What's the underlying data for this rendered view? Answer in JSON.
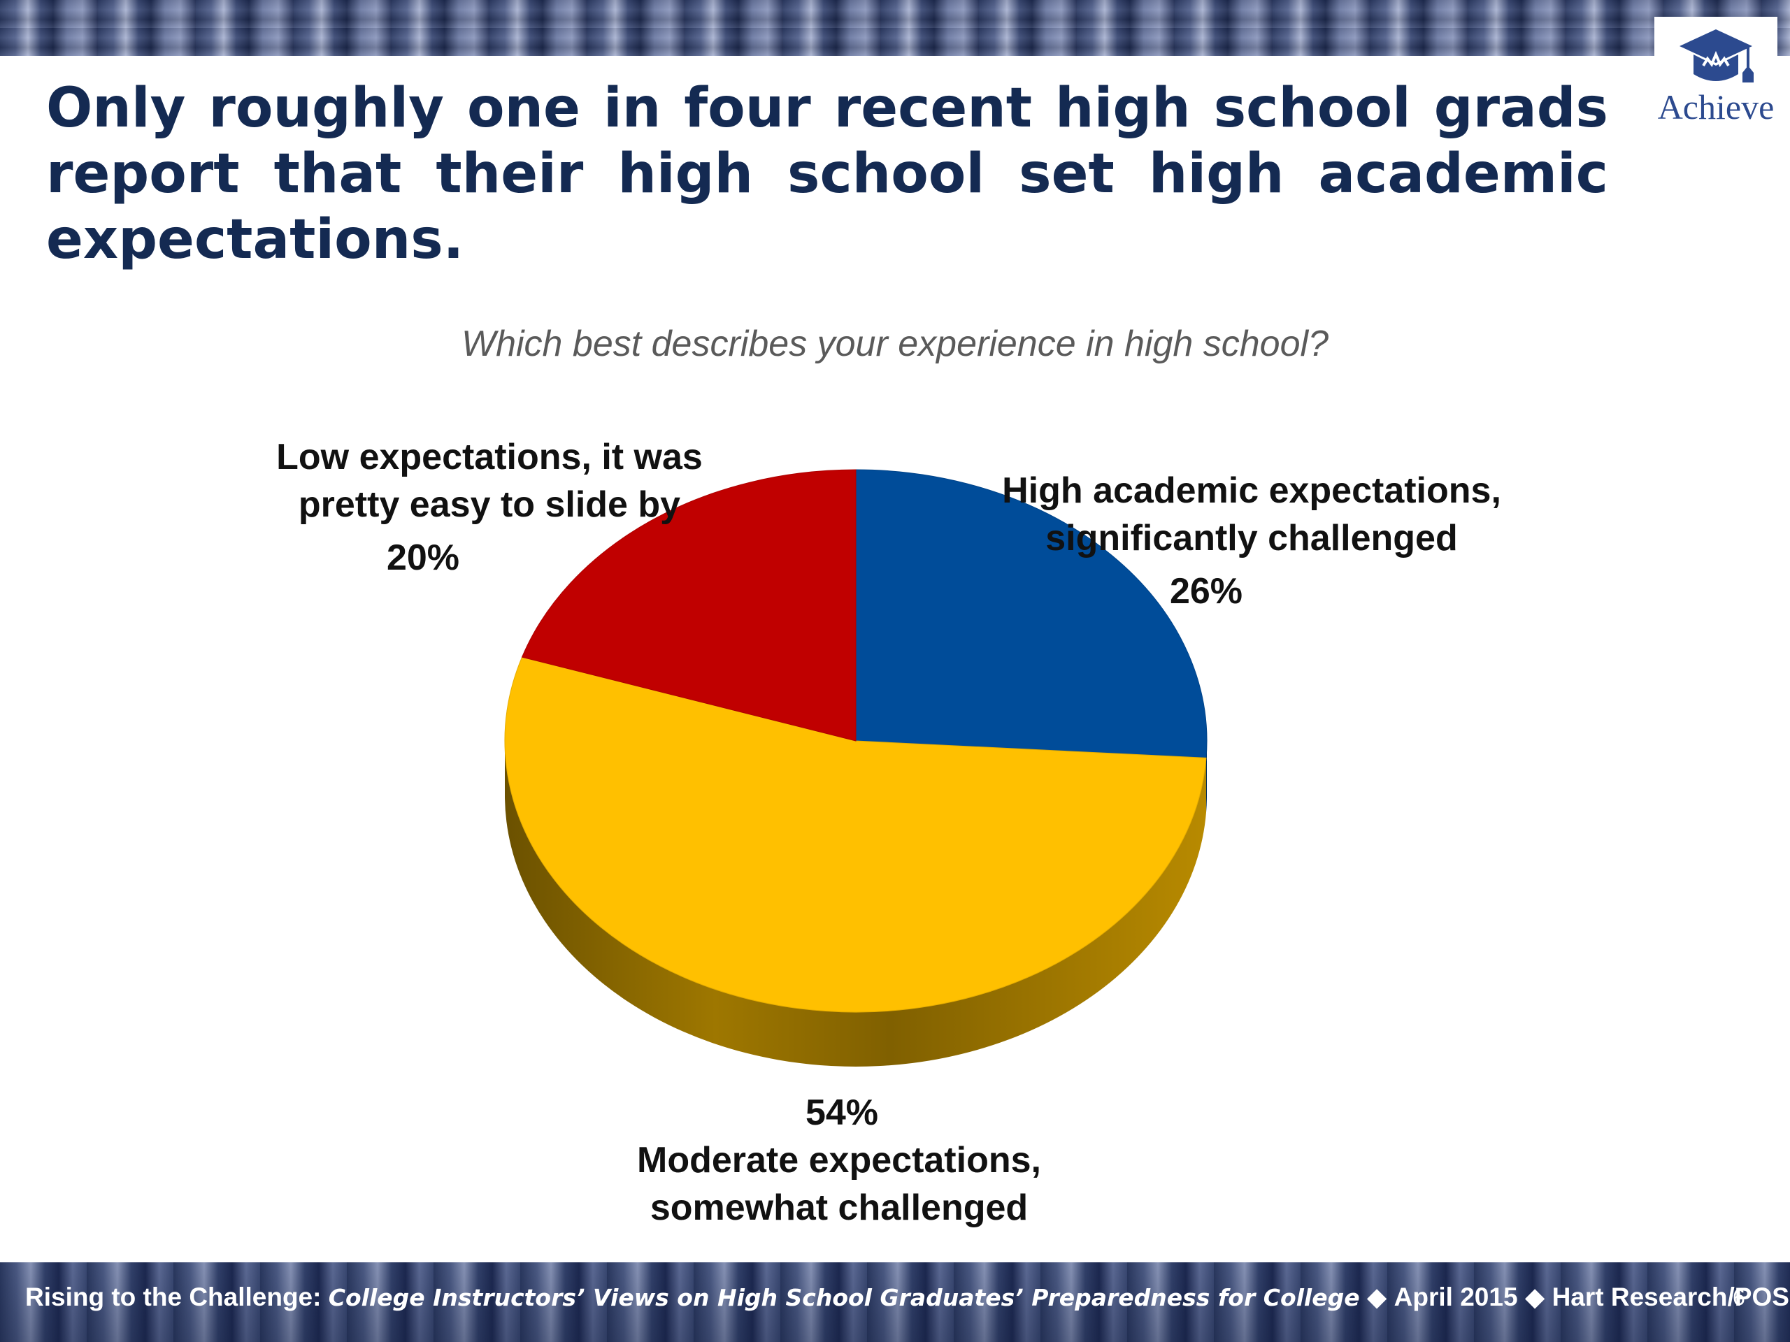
{
  "slide": {
    "title": "Only roughly one in four recent high school grads report that their high school set high academic expectations.",
    "logo_text": "Achieve",
    "page_number": "6"
  },
  "footer": {
    "prefix": "Rising to the Challenge:",
    "italic": "College Instructors’ Views on High School Graduates’ Preparedness for College",
    "separator": "◆",
    "date": "April 2015",
    "source": "Hart Research/POS"
  },
  "chart_data": {
    "type": "pie",
    "title": "Which best describes your experience in high school?",
    "slices": [
      {
        "label_line1": "High academic expectations,",
        "label_line2": "significantly challenged",
        "value": 26,
        "value_label": "26%",
        "color": "#004c99"
      },
      {
        "label_line1": "Moderate expectations,",
        "label_line2": "somewhat challenged",
        "value": 54,
        "value_label": "54%",
        "color": "#ffc000"
      },
      {
        "label_line1": "Low expectations,  it was",
        "label_line2": "pretty easy to slide by",
        "value": 20,
        "value_label": "20%",
        "color": "#c00000"
      }
    ],
    "start": "12 o'clock",
    "direction": "clockwise",
    "style": "3d"
  }
}
